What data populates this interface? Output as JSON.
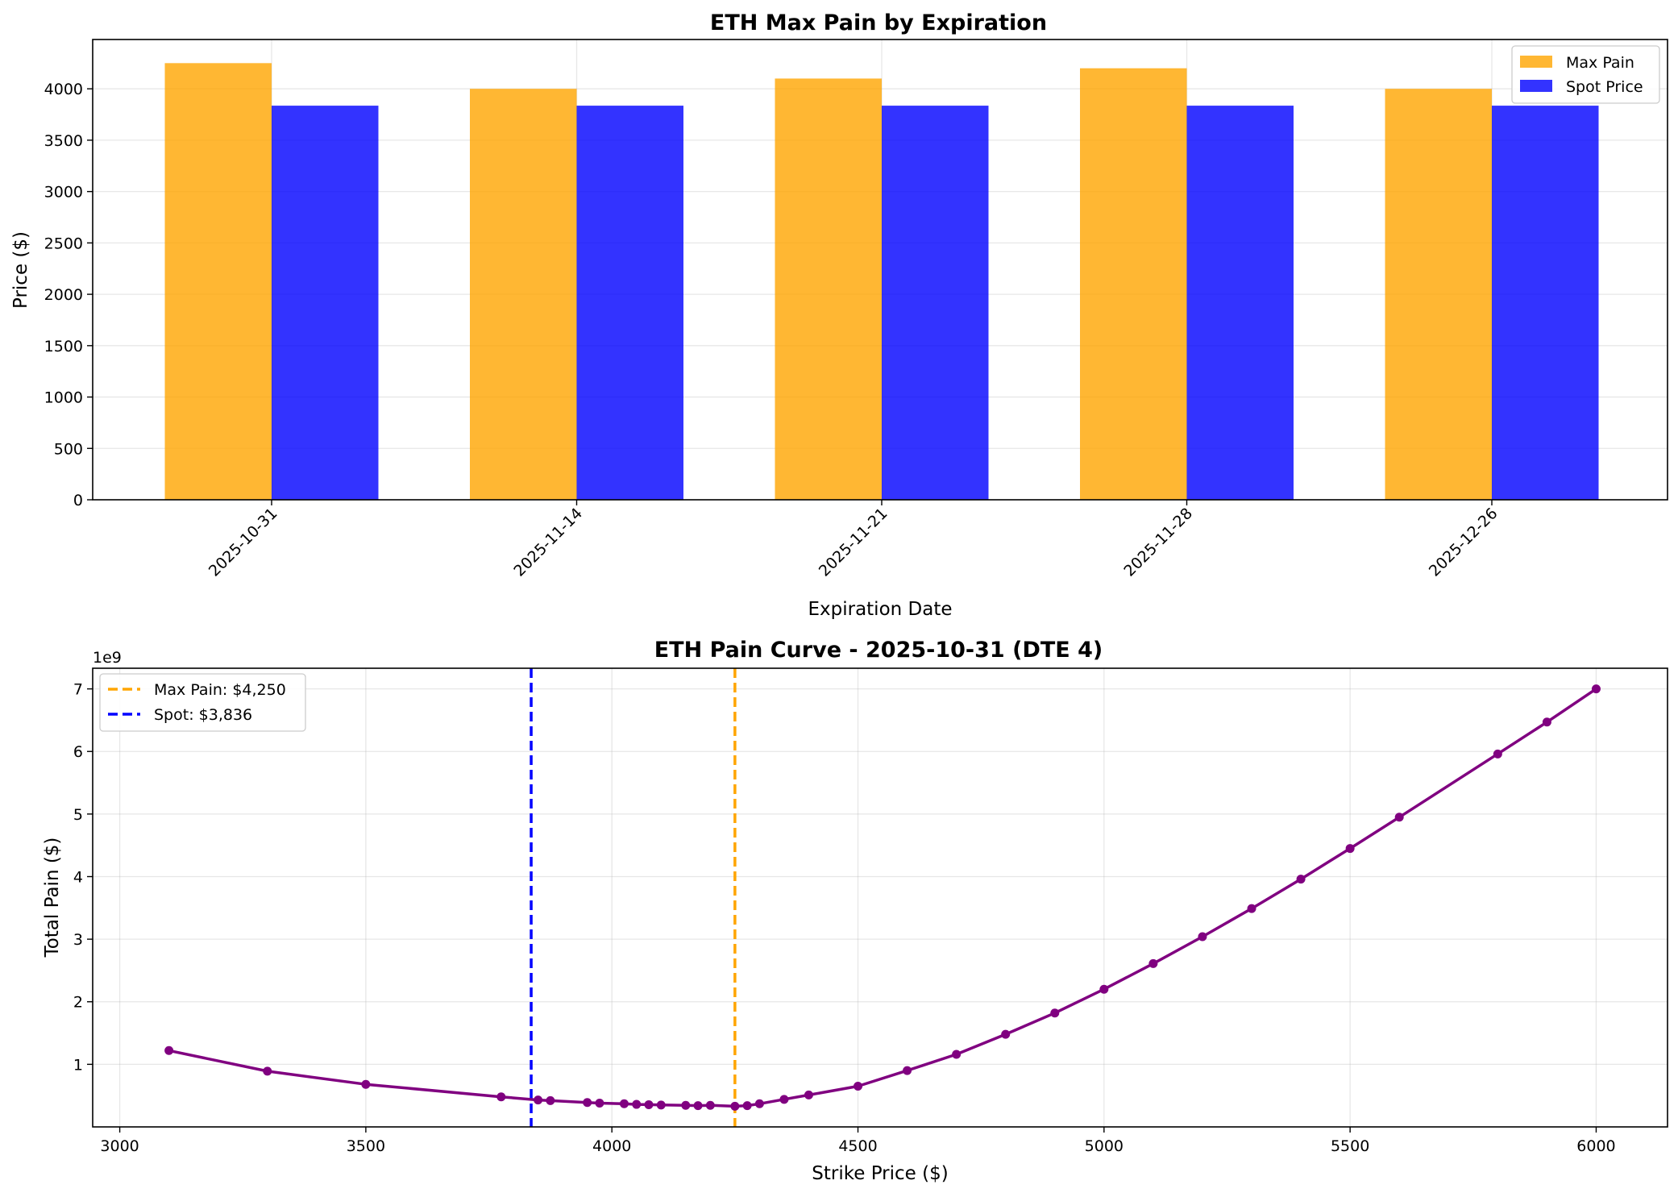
{
  "chart_data": [
    {
      "type": "bar",
      "title": "ETH Max Pain by Expiration",
      "xlabel": "Expiration Date",
      "ylabel": "Price ($)",
      "categories": [
        "2025-10-31",
        "2025-11-14",
        "2025-11-21",
        "2025-11-28",
        "2025-12-26"
      ],
      "series": [
        {
          "name": "Max Pain",
          "color": "#FFA500",
          "values": [
            4250,
            4000,
            4100,
            4200,
            4000
          ]
        },
        {
          "name": "Spot Price",
          "color": "#0000FF",
          "values": [
            3836,
            3836,
            3836,
            3836,
            3836
          ]
        }
      ],
      "ylim": [
        0,
        4480
      ],
      "yticks": [
        0,
        500,
        1000,
        1500,
        2000,
        2500,
        3000,
        3500,
        4000
      ],
      "grid": true,
      "legend": "upper right"
    },
    {
      "type": "line",
      "title": "ETH Pain Curve - 2025-10-31 (DTE 4)",
      "xlabel": "Strike Price ($)",
      "ylabel": "Total Pain ($)",
      "y_scale_label": "1e9",
      "xlim": [
        2945,
        6145
      ],
      "ylim": [
        0.0,
        7.33
      ],
      "xticks": [
        3000,
        3500,
        4000,
        4500,
        5000,
        5500,
        6000
      ],
      "yticks": [
        1,
        2,
        3,
        4,
        5,
        6,
        7
      ],
      "grid": true,
      "legend": "upper left",
      "series": [
        {
          "name": "Pain Curve",
          "color": "#800080",
          "x": [
            3100,
            3300,
            3500,
            3775,
            3850,
            3875,
            3950,
            3975,
            4025,
            4050,
            4075,
            4100,
            4150,
            4175,
            4200,
            4250,
            4275,
            4300,
            4350,
            4400,
            4500,
            4600,
            4700,
            4800,
            4900,
            5000,
            5100,
            5200,
            5300,
            5400,
            5500,
            5600,
            5800,
            5900,
            6000
          ],
          "y": [
            1.22,
            0.89,
            0.68,
            0.48,
            0.43,
            0.42,
            0.39,
            0.38,
            0.37,
            0.36,
            0.355,
            0.35,
            0.345,
            0.34,
            0.345,
            0.33,
            0.34,
            0.37,
            0.44,
            0.51,
            0.65,
            0.9,
            1.16,
            1.48,
            1.82,
            2.2,
            2.61,
            3.04,
            3.49,
            3.96,
            4.45,
            4.95,
            5.96,
            6.47,
            7.0
          ]
        }
      ],
      "vlines": [
        {
          "name": "Max Pain: $4,250",
          "x": 4250,
          "color": "#FFA500",
          "style": "dashed"
        },
        {
          "name": "Spot: $3,836",
          "x": 3836,
          "color": "#0000FF",
          "style": "dashed"
        }
      ]
    }
  ]
}
